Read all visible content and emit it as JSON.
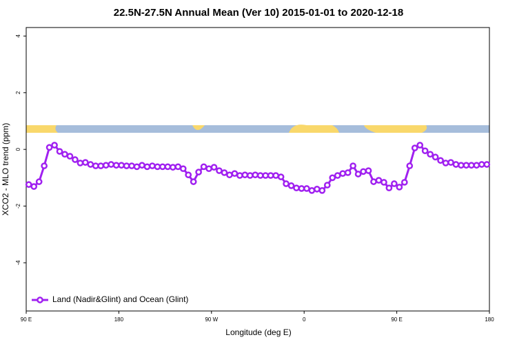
{
  "chart_data": {
    "type": "line",
    "title": "22.5N-27.5N Annual Mean (Ver 10)   2015-01-01 to 2020-12-18",
    "xlabel": "Longitude (deg E)",
    "ylabel": "XCO2 - MLO trend (ppm)",
    "xlim": [
      90,
      540
    ],
    "ylim": [
      -5.7,
      4.3
    ],
    "xticks": [
      {
        "value": 90,
        "label": "90 E"
      },
      180,
      {
        "value": 270,
        "label": "90 W"
      },
      {
        "value": 360,
        "label": "0"
      },
      {
        "value": 450,
        "label": "90 E"
      },
      {
        "value": 540,
        "label": "180"
      }
    ],
    "yticks": [
      4,
      2,
      0,
      -2,
      -4
    ],
    "legend": "lower left",
    "x": [
      92.5,
      97.5,
      102.5,
      107.5,
      112.5,
      117.5,
      122.5,
      127.5,
      132.5,
      137.5,
      142.5,
      147.5,
      152.5,
      157.5,
      162.5,
      167.5,
      172.5,
      177.5,
      182.5,
      187.5,
      192.5,
      197.5,
      202.5,
      207.5,
      212.5,
      217.5,
      222.5,
      227.5,
      232.5,
      237.5,
      242.5,
      247.5,
      252.5,
      257.5,
      262.5,
      267.5,
      272.5,
      277.5,
      282.5,
      287.5,
      292.5,
      297.5,
      302.5,
      307.5,
      312.5,
      317.5,
      322.5,
      327.5,
      332.5,
      337.5,
      342.5,
      347.5,
      352.5,
      357.5,
      362.5,
      367.5,
      372.5,
      377.5,
      382.5,
      387.5,
      392.5,
      397.5,
      402.5,
      407.5,
      412.5,
      417.5,
      422.5,
      427.5,
      432.5,
      437.5,
      442.5,
      447.5,
      452.5,
      457.5,
      462.5,
      467.5,
      472.5,
      477.5,
      482.5,
      487.5,
      492.5,
      497.5,
      502.5,
      507.5,
      512.5,
      517.5,
      522.5,
      527.5,
      532.5,
      537.5
    ],
    "series": [
      {
        "name": "Land (Nadir&Glint) and Ocean (Glint)",
        "color": "#a020f0",
        "values": [
          -1.24,
          -1.31,
          -1.14,
          -0.58,
          0.07,
          0.15,
          -0.07,
          -0.17,
          -0.24,
          -0.36,
          -0.48,
          -0.46,
          -0.53,
          -0.58,
          -0.58,
          -0.56,
          -0.53,
          -0.56,
          -0.56,
          -0.58,
          -0.58,
          -0.61,
          -0.56,
          -0.61,
          -0.58,
          -0.61,
          -0.61,
          -0.61,
          -0.63,
          -0.61,
          -0.68,
          -0.9,
          -1.14,
          -0.8,
          -0.61,
          -0.68,
          -0.63,
          -0.75,
          -0.82,
          -0.9,
          -0.85,
          -0.92,
          -0.9,
          -0.92,
          -0.9,
          -0.92,
          -0.92,
          -0.92,
          -0.92,
          -0.97,
          -1.21,
          -1.28,
          -1.36,
          -1.38,
          -1.38,
          -1.45,
          -1.4,
          -1.45,
          -1.26,
          -1.0,
          -0.92,
          -0.85,
          -0.82,
          -0.58,
          -0.87,
          -0.78,
          -0.75,
          -1.14,
          -1.09,
          -1.16,
          -1.36,
          -1.21,
          -1.33,
          -1.16,
          -0.58,
          0.05,
          0.15,
          -0.05,
          -0.17,
          -0.27,
          -0.39,
          -0.48,
          -0.46,
          -0.53,
          -0.56,
          -0.56,
          -0.56,
          -0.56,
          -0.53,
          -0.53
        ]
      }
    ]
  }
}
